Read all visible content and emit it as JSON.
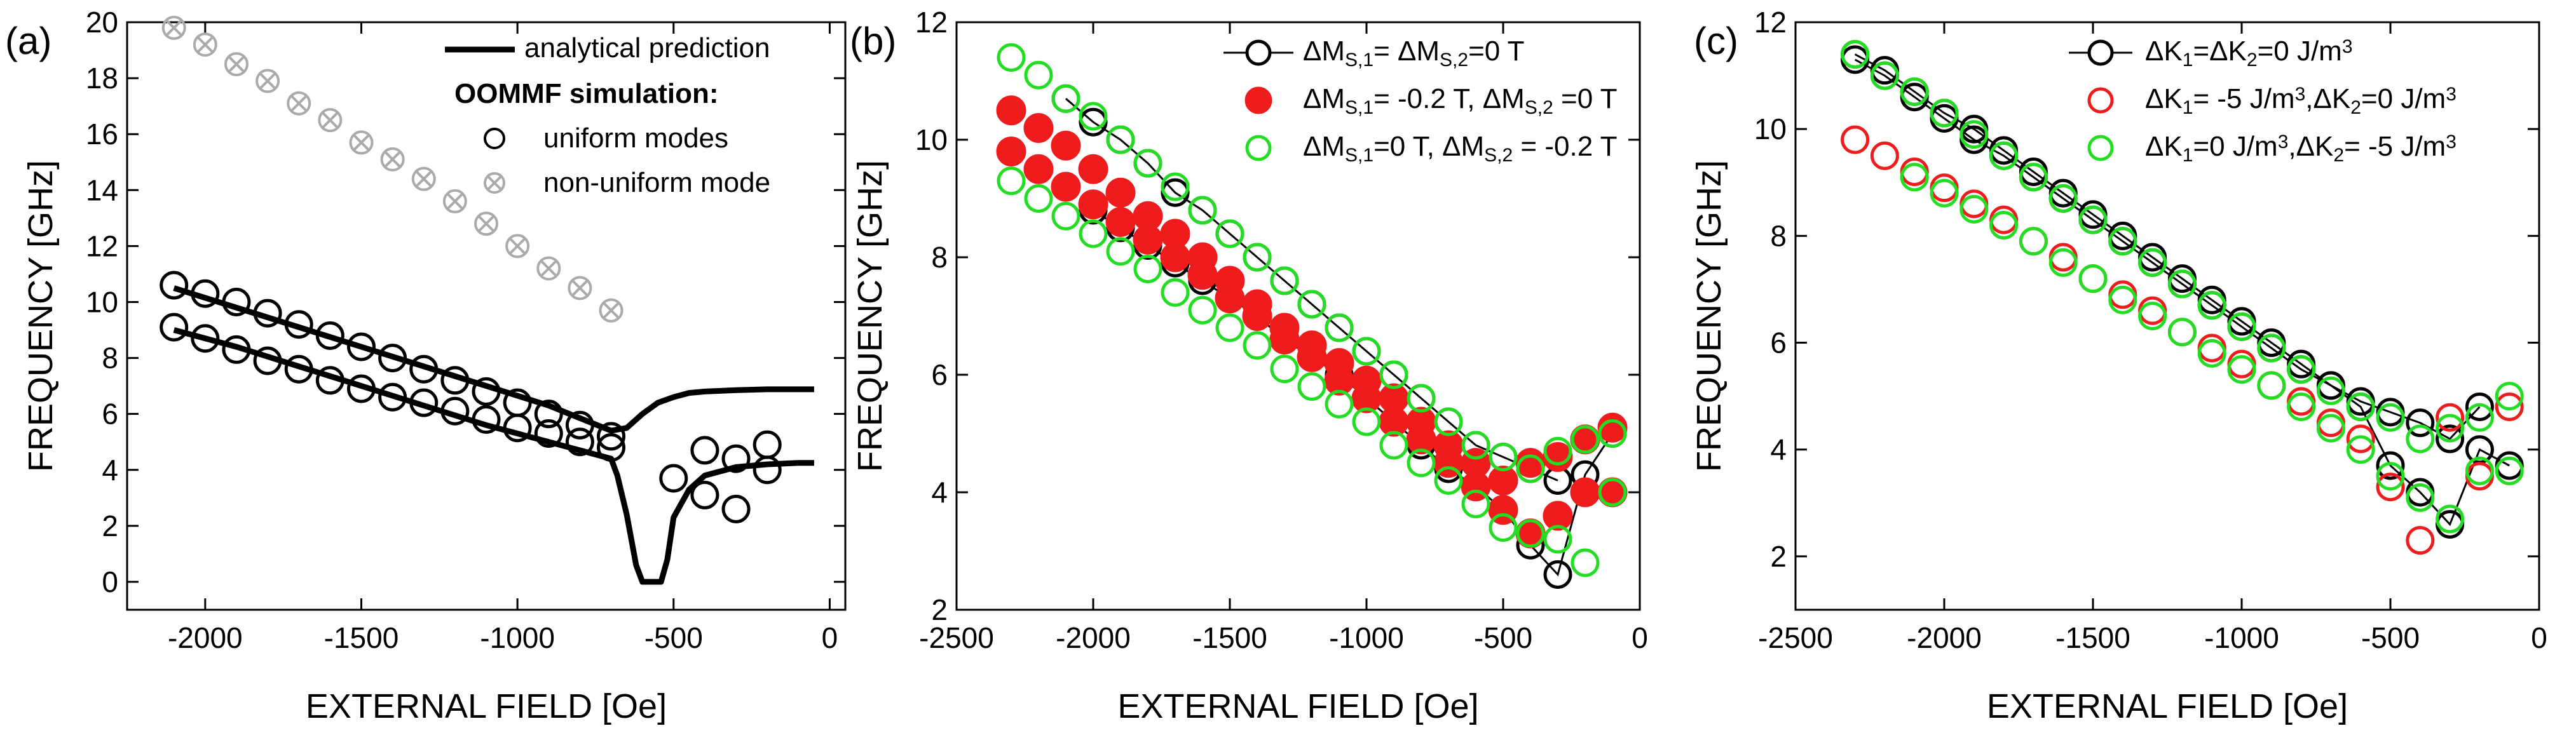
{
  "chart_data": [
    {
      "type": "scatter",
      "panel_label": "(a)",
      "xlabel": "EXTERNAL FIELD [Oe]",
      "ylabel": "FREQUENCY [GHz]",
      "xlim": [
        -2250,
        50
      ],
      "ylim": [
        -1,
        20
      ],
      "xticks": [
        -2000,
        -1500,
        -1000,
        -500,
        0
      ],
      "yticks": [
        0,
        2,
        4,
        6,
        8,
        10,
        12,
        14,
        16,
        18,
        20
      ],
      "legend": {
        "analytical": "analytical prediction",
        "header": "OOMMF simulation:",
        "uniform": "uniform modes",
        "nonuniform": "non-uniform mode"
      },
      "series": [
        {
          "name": "analytical prediction (upper)",
          "style": "line",
          "x": [
            -2100,
            -1900,
            -1700,
            -1500,
            -1300,
            -1100,
            -900,
            -700,
            -650,
            -600,
            -550,
            -500,
            -450,
            -400,
            -300,
            -200,
            -100,
            -50
          ],
          "y": [
            10.5,
            9.8,
            9.1,
            8.4,
            7.7,
            7.0,
            6.3,
            5.4,
            5.5,
            6.0,
            6.4,
            6.6,
            6.75,
            6.8,
            6.85,
            6.88,
            6.88,
            6.88
          ]
        },
        {
          "name": "analytical prediction (lower)",
          "style": "line",
          "x": [
            -2100,
            -1900,
            -1700,
            -1500,
            -1300,
            -1100,
            -900,
            -700,
            -680,
            -650,
            -620,
            -600,
            -580,
            -560,
            -540,
            -520,
            -500,
            -450,
            -400,
            -300,
            -200,
            -100,
            -50
          ],
          "y": [
            9.0,
            8.4,
            7.7,
            7.0,
            6.3,
            5.6,
            5.0,
            4.4,
            3.8,
            2.4,
            0.6,
            0.0,
            0.0,
            0.0,
            0.0,
            0.8,
            2.3,
            3.3,
            3.8,
            4.1,
            4.2,
            4.25,
            4.25
          ]
        },
        {
          "name": "uniform modes (upper)",
          "style": "open-circle",
          "x": [
            -2100,
            -2000,
            -1900,
            -1800,
            -1700,
            -1600,
            -1500,
            -1400,
            -1300,
            -1200,
            -1100,
            -1000,
            -900,
            -800,
            -700,
            -400,
            -300,
            -200
          ],
          "y": [
            10.6,
            10.3,
            10.0,
            9.6,
            9.2,
            8.8,
            8.4,
            8.0,
            7.6,
            7.2,
            6.8,
            6.4,
            6.0,
            5.6,
            5.2,
            4.7,
            4.4,
            4.9
          ]
        },
        {
          "name": "uniform modes (lower)",
          "style": "open-circle",
          "x": [
            -2100,
            -2000,
            -1900,
            -1800,
            -1700,
            -1600,
            -1500,
            -1400,
            -1300,
            -1200,
            -1100,
            -1000,
            -900,
            -800,
            -700,
            -500,
            -400,
            -300,
            -200
          ],
          "y": [
            9.1,
            8.7,
            8.3,
            7.9,
            7.6,
            7.2,
            6.9,
            6.6,
            6.4,
            6.1,
            5.8,
            5.5,
            5.3,
            5.0,
            4.8,
            3.7,
            3.1,
            2.6,
            4.0
          ]
        },
        {
          "name": "non-uniform mode",
          "style": "crossed-circle",
          "x": [
            -2100,
            -2000,
            -1900,
            -1800,
            -1700,
            -1600,
            -1500,
            -1400,
            -1300,
            -1200,
            -1100,
            -1000,
            -900,
            -800,
            -700
          ],
          "y": [
            19.8,
            19.2,
            18.5,
            17.9,
            17.1,
            16.5,
            15.7,
            15.1,
            14.4,
            13.6,
            12.8,
            12.0,
            11.2,
            10.5,
            9.7
          ]
        }
      ]
    },
    {
      "type": "scatter",
      "panel_label": "(b)",
      "xlabel": "EXTERNAL FIELD [Oe]",
      "ylabel": "FREQUENCY [GHz]",
      "xlim": [
        -2500,
        0
      ],
      "ylim": [
        2,
        12
      ],
      "xticks": [
        -2500,
        -2000,
        -1500,
        -1000,
        -500,
        0
      ],
      "yticks": [
        2,
        4,
        6,
        8,
        10,
        12
      ],
      "legend_entries": [
        {
          "main": "ΔM",
          "sub": "S,1",
          "mid": "= ΔM",
          "sub2": "S,2",
          "tail": "=0 T"
        },
        {
          "main": "ΔM",
          "sub": "S,1",
          "mid": "= -0.2 T, ΔM",
          "sub2": "S,2",
          "tail": " =0 T"
        },
        {
          "main": "ΔM",
          "sub": "S,1",
          "mid": "=0 T, ΔM",
          "sub2": "S,2",
          "tail": " = -0.2 T"
        }
      ],
      "series": [
        {
          "name": "ΔMS,1 = ΔMS,2 = 0 T (upper)",
          "style": "open-circle-line",
          "color": "#000000",
          "x": [
            -2100,
            -2000,
            -1900,
            -1800,
            -1700,
            -1600,
            -1500,
            -1400,
            -1300,
            -1200,
            -1100,
            -1000,
            -900,
            -800,
            -700,
            -600,
            -500,
            -400,
            -300
          ],
          "y": [
            10.7,
            10.3,
            10.0,
            9.6,
            9.1,
            8.8,
            8.4,
            8.0,
            7.6,
            7.2,
            6.8,
            6.4,
            6.0,
            5.6,
            5.2,
            4.8,
            4.6,
            4.4,
            4.2
          ]
        },
        {
          "name": "ΔMS,1 = ΔMS,2 = 0 T (lower)",
          "style": "open-circle-line",
          "color": "#000000",
          "x": [
            -2000,
            -1900,
            -1800,
            -1700,
            -1600,
            -1500,
            -1400,
            -1300,
            -1200,
            -1100,
            -1000,
            -900,
            -800,
            -700,
            -600,
            -500,
            -400,
            -300,
            -200,
            -100
          ],
          "y": [
            8.8,
            8.5,
            8.2,
            7.9,
            7.6,
            7.3,
            7.0,
            6.6,
            6.3,
            6.0,
            5.6,
            5.2,
            4.8,
            4.4,
            4.1,
            3.7,
            3.1,
            2.6,
            4.3,
            5.0
          ]
        },
        {
          "name": "ΔMS,1 = -0.2 T, ΔMS,2 = 0 T",
          "style": "filled-circle",
          "color": "#ee1c1c",
          "x": [
            -2300,
            -2200,
            -2100,
            -2000,
            -1900,
            -1800,
            -1700,
            -1600,
            -1500,
            -1400,
            -1300,
            -1200,
            -1100,
            -1000,
            -900,
            -800,
            -700,
            -600,
            -500,
            -400,
            -300,
            -200,
            -100,
            -2300,
            -2200,
            -2100,
            -2000,
            -1900,
            -1800,
            -1700,
            -1600,
            -1500,
            -1400,
            -1300,
            -1200,
            -1100,
            -1000,
            -900,
            -800,
            -700,
            -600,
            -500,
            -400,
            -300,
            -200,
            -100
          ],
          "y": [
            10.5,
            10.2,
            9.9,
            9.5,
            9.1,
            8.7,
            8.4,
            8.0,
            7.6,
            7.2,
            6.8,
            6.5,
            6.2,
            5.9,
            5.6,
            5.2,
            4.8,
            4.5,
            4.2,
            4.5,
            4.6,
            4.9,
            5.1,
            9.8,
            9.5,
            9.2,
            8.9,
            8.6,
            8.3,
            8.0,
            7.7,
            7.3,
            7.0,
            6.6,
            6.3,
            5.9,
            5.6,
            5.2,
            4.9,
            4.5,
            4.1,
            3.7,
            3.3,
            3.6,
            4.0,
            4.0
          ]
        },
        {
          "name": "ΔMS,1 = 0 T, ΔMS,2 = -0.2 T",
          "style": "open-circle",
          "color": "#22dd22",
          "x": [
            -2300,
            -2200,
            -2100,
            -2000,
            -1900,
            -1800,
            -1700,
            -1600,
            -1500,
            -1400,
            -1300,
            -1200,
            -1100,
            -1000,
            -900,
            -800,
            -700,
            -600,
            -500,
            -400,
            -300,
            -200,
            -100,
            -2300,
            -2200,
            -2100,
            -2000,
            -1900,
            -1800,
            -1700,
            -1600,
            -1500,
            -1400,
            -1300,
            -1200,
            -1100,
            -1000,
            -900,
            -800,
            -700,
            -600,
            -500,
            -400,
            -300,
            -200,
            -100
          ],
          "y": [
            11.4,
            11.1,
            10.7,
            10.4,
            10.0,
            9.6,
            9.2,
            8.8,
            8.4,
            8.0,
            7.6,
            7.2,
            6.8,
            6.4,
            6.0,
            5.6,
            5.2,
            4.8,
            4.6,
            4.4,
            4.7,
            4.9,
            5.0,
            9.3,
            9.0,
            8.7,
            8.4,
            8.1,
            7.8,
            7.4,
            7.1,
            6.8,
            6.5,
            6.1,
            5.8,
            5.5,
            5.2,
            4.8,
            4.5,
            4.2,
            3.8,
            3.4,
            3.3,
            3.2,
            2.8,
            4.0
          ]
        }
      ]
    },
    {
      "type": "scatter",
      "panel_label": "(c)",
      "xlabel": "EXTERNAL FIELD [Oe]",
      "ylabel": "FREQUENCY [GHz]",
      "xlim": [
        -2500,
        0
      ],
      "ylim": [
        1,
        12
      ],
      "xticks": [
        -2500,
        -2000,
        -1500,
        -1000,
        -500,
        0
      ],
      "yticks": [
        2,
        4,
        6,
        8,
        10,
        12
      ],
      "legend_entries": [
        {
          "a": "ΔK",
          "as": "1",
          "b": "=ΔK",
          "bs": "2",
          "c": "=0 J/m",
          "cs": "3",
          "d": ""
        },
        {
          "a": "ΔK",
          "as": "1",
          "b": "= -5 J/m",
          "bs": "3",
          "c": ",ΔK",
          "cs": "2",
          "d": "=0 J/m",
          "ds": "3"
        },
        {
          "a": "ΔK",
          "as": "1",
          "b": "=0 J/m",
          "bs": "3",
          "c": ",ΔK",
          "cs": "2",
          "d": "= -5 J/m",
          "ds": "3"
        }
      ],
      "series": [
        {
          "name": "ΔK1 = ΔK2 = 0 J/m3 (upper)",
          "style": "open-circle-line",
          "color": "#000000",
          "x": [
            -2300,
            -2200,
            -2100,
            -2000,
            -1900,
            -1800,
            -1700,
            -1600,
            -1500,
            -1400,
            -1300,
            -1200,
            -1100,
            -1000,
            -900,
            -800,
            -700,
            -600,
            -500,
            -400,
            -300,
            -200
          ],
          "y": [
            11.4,
            11.1,
            10.7,
            10.3,
            10.0,
            9.6,
            9.2,
            8.8,
            8.4,
            8.0,
            7.6,
            7.2,
            6.8,
            6.4,
            6.0,
            5.6,
            5.2,
            4.9,
            4.7,
            4.5,
            4.2,
            4.8
          ]
        },
        {
          "name": "ΔK1 = ΔK2 = 0 J/m3 (lower)",
          "style": "open-circle-line",
          "color": "#000000",
          "x": [
            -2300,
            -2200,
            -2100,
            -2000,
            -1900,
            -1800,
            -1700,
            -1600,
            -1500,
            -1400,
            -1300,
            -1200,
            -1100,
            -1000,
            -900,
            -800,
            -700,
            -600,
            -500,
            -400,
            -300,
            -200,
            -100
          ],
          "y": [
            11.3,
            11.0,
            10.6,
            10.2,
            9.8,
            9.5,
            9.1,
            8.7,
            8.3,
            7.9,
            7.5,
            7.1,
            6.7,
            6.3,
            5.9,
            5.5,
            5.2,
            4.8,
            3.7,
            3.2,
            2.6,
            4.0,
            3.7
          ]
        },
        {
          "name": "ΔK1 = -5 J/m3, ΔK2 = 0 J/m3",
          "style": "open-circle",
          "color": "#ee1c1c",
          "x": [
            -2300,
            -2200,
            -2100,
            -2000,
            -1900,
            -1800,
            -1700,
            -1600,
            -1500,
            -1400,
            -1300,
            -1200,
            -1100,
            -1000,
            -900,
            -800,
            -700,
            -600,
            -500,
            -400,
            -300,
            -200,
            -100
          ],
          "y": [
            9.8,
            9.5,
            9.2,
            8.9,
            8.6,
            8.3,
            7.9,
            7.6,
            7.2,
            6.9,
            6.6,
            6.2,
            5.9,
            5.6,
            5.2,
            4.9,
            4.5,
            4.2,
            3.3,
            2.3,
            4.6,
            3.5,
            4.8
          ]
        },
        {
          "name": "ΔK1 = 0 J/m3, ΔK2 = -5 J/m3",
          "style": "open-circle",
          "color": "#22dd22",
          "x": [
            -2300,
            -2200,
            -2100,
            -2000,
            -1900,
            -1800,
            -1700,
            -1600,
            -1500,
            -1400,
            -1300,
            -1200,
            -1100,
            -1000,
            -900,
            -800,
            -700,
            -600,
            -500,
            -400,
            -300,
            -200,
            -100,
            -2100,
            -2000,
            -1900,
            -1800,
            -1700,
            -1600,
            -1500,
            -1400,
            -1300,
            -1200,
            -1100,
            -1000,
            -900,
            -800,
            -700,
            -600,
            -500,
            -400,
            -300,
            -200,
            -100
          ],
          "y": [
            11.4,
            11.0,
            10.7,
            10.3,
            9.9,
            9.5,
            9.1,
            8.7,
            8.3,
            7.9,
            7.5,
            7.1,
            6.7,
            6.3,
            5.9,
            5.5,
            5.1,
            4.8,
            4.6,
            4.2,
            4.4,
            4.6,
            5.0,
            9.1,
            8.8,
            8.5,
            8.2,
            7.9,
            7.5,
            7.2,
            6.8,
            6.5,
            6.2,
            5.8,
            5.5,
            5.2,
            4.8,
            4.4,
            4.0,
            3.5,
            3.1,
            2.7,
            3.6,
            3.6
          ]
        }
      ]
    }
  ]
}
